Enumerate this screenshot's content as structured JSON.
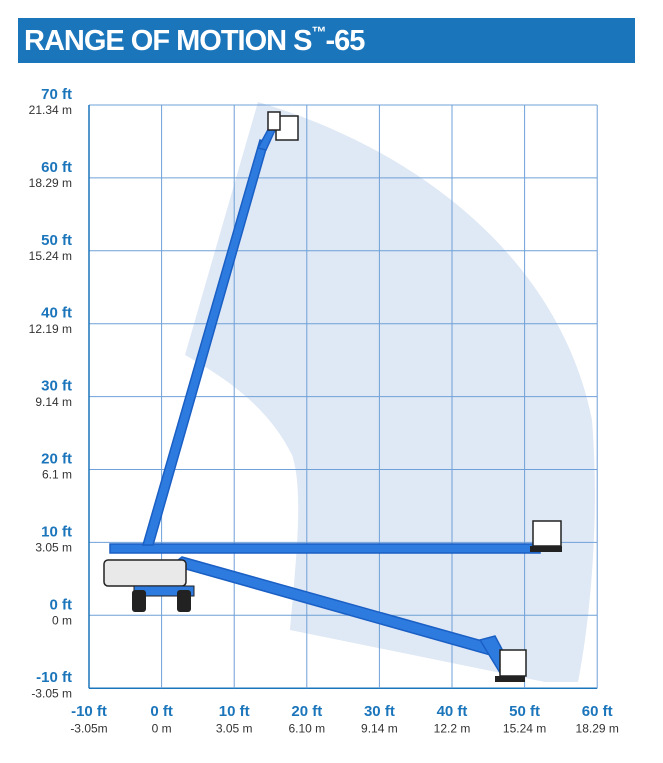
{
  "header": {
    "title_main": "RANGE OF MOTION S",
    "title_mark": "™",
    "title_suffix": "-65"
  },
  "y_axis": [
    {
      "ft": "70 ft",
      "m": "21.34 m"
    },
    {
      "ft": "60 ft",
      "m": "18.29 m"
    },
    {
      "ft": "50 ft",
      "m": "15.24 m"
    },
    {
      "ft": "40 ft",
      "m": "12.19 m"
    },
    {
      "ft": "30 ft",
      "m": "9.14 m"
    },
    {
      "ft": "20 ft",
      "m": "6.1 m"
    },
    {
      "ft": "10 ft",
      "m": "3.05 m"
    },
    {
      "ft": "0 ft",
      "m": "0 m"
    },
    {
      "ft": "-10 ft",
      "m": "-3.05 m"
    }
  ],
  "x_axis": [
    {
      "ft": "-10 ft",
      "m": "-3.05m"
    },
    {
      "ft": "0 ft",
      "m": "0 m"
    },
    {
      "ft": "10 ft",
      "m": "3.05 m"
    },
    {
      "ft": "20 ft",
      "m": "6.10 m"
    },
    {
      "ft": "30 ft",
      "m": "9.14 m"
    },
    {
      "ft": "40 ft",
      "m": "12.2 m"
    },
    {
      "ft": "50 ft",
      "m": "15.24 m"
    },
    {
      "ft": "60 ft",
      "m": "18.29 m"
    }
  ]
}
